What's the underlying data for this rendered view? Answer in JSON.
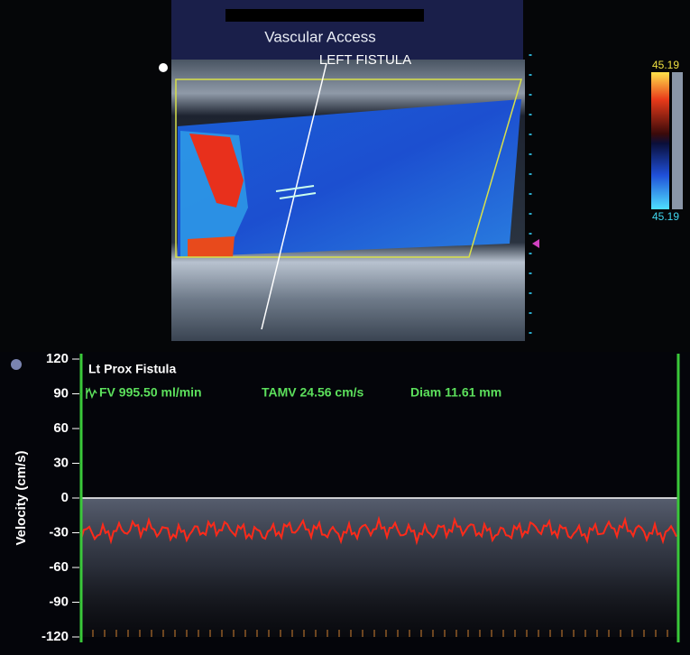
{
  "header": {
    "title": "Vascular Access",
    "label": "LEFT FISTULA"
  },
  "color_scale": {
    "top": "45.19",
    "bottom": "45.19"
  },
  "spectrum": {
    "y_label": "Velocity (cm/s)",
    "ylim": [
      -120,
      120
    ],
    "yticks": [
      120,
      90,
      60,
      30,
      0,
      -30,
      -60,
      -90,
      -120
    ],
    "site": "Lt Prox Fistula",
    "measurements": [
      "FV 995.50 ml/min",
      "TAMV 24.56 cm/s",
      "Diam 11.61 mm"
    ]
  }
}
